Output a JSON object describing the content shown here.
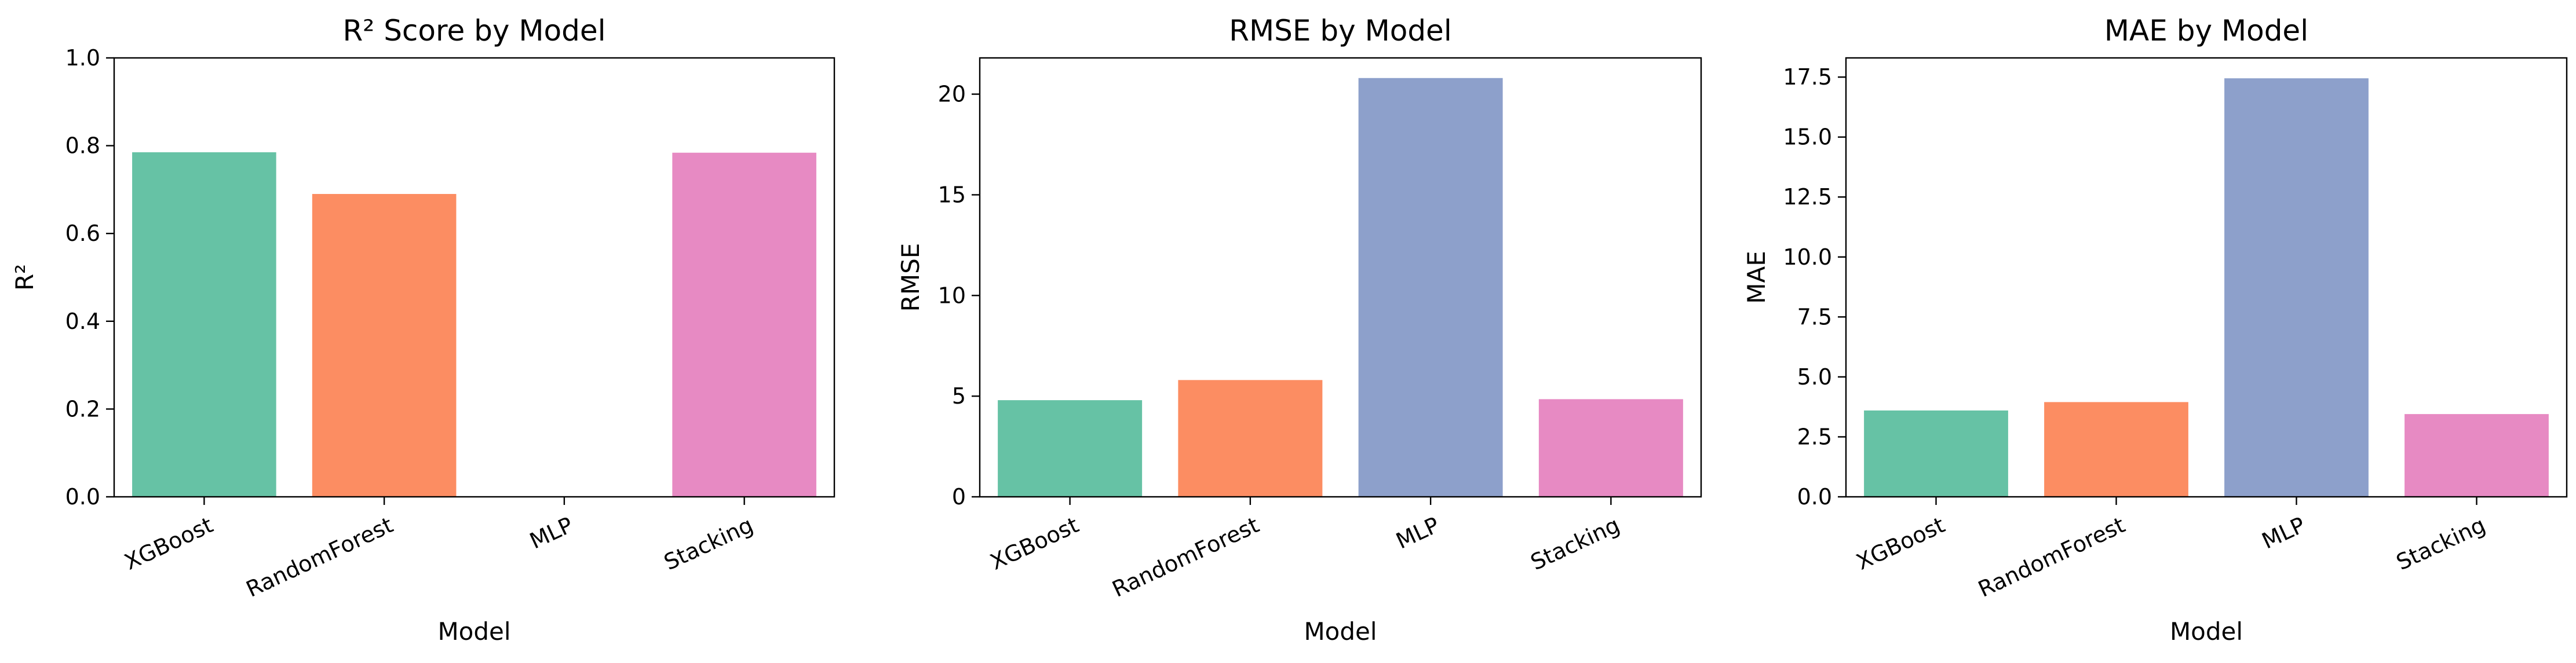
{
  "chart_data": [
    {
      "type": "bar",
      "title": "R² Score by Model",
      "xlabel": "Model",
      "ylabel": "R²",
      "categories": [
        "XGBoost",
        "RandomForest",
        "MLP",
        "Stacking"
      ],
      "values": [
        0.785,
        0.69,
        0.0,
        0.784
      ],
      "ylim": [
        0,
        1.0
      ],
      "yticks": [
        "0.0",
        "0.2",
        "0.4",
        "0.6",
        "0.8",
        "1.0"
      ],
      "colors": [
        "#66c2a5",
        "#fc8d62",
        "#8da0cb",
        "#e78ac3"
      ],
      "grid": false,
      "legend": "none"
    },
    {
      "type": "bar",
      "title": "RMSE by Model",
      "xlabel": "Model",
      "ylabel": "RMSE",
      "categories": [
        "XGBoost",
        "RandomForest",
        "MLP",
        "Stacking"
      ],
      "values": [
        4.8,
        5.8,
        20.8,
        4.85
      ],
      "ylim": [
        0,
        21.8
      ],
      "yticks": [
        "0",
        "5",
        "10",
        "15",
        "20"
      ],
      "colors": [
        "#66c2a5",
        "#fc8d62",
        "#8da0cb",
        "#e78ac3"
      ],
      "grid": false,
      "legend": "none"
    },
    {
      "type": "bar",
      "title": "MAE by Model",
      "xlabel": "Model",
      "ylabel": "MAE",
      "categories": [
        "XGBoost",
        "RandomForest",
        "MLP",
        "Stacking"
      ],
      "values": [
        3.6,
        3.95,
        17.45,
        3.45
      ],
      "ylim": [
        0,
        18.3
      ],
      "yticks": [
        "0.0",
        "2.5",
        "5.0",
        "7.5",
        "10.0",
        "12.5",
        "15.0",
        "17.5"
      ],
      "colors": [
        "#66c2a5",
        "#fc8d62",
        "#8da0cb",
        "#e78ac3"
      ],
      "grid": false,
      "legend": "none"
    }
  ]
}
